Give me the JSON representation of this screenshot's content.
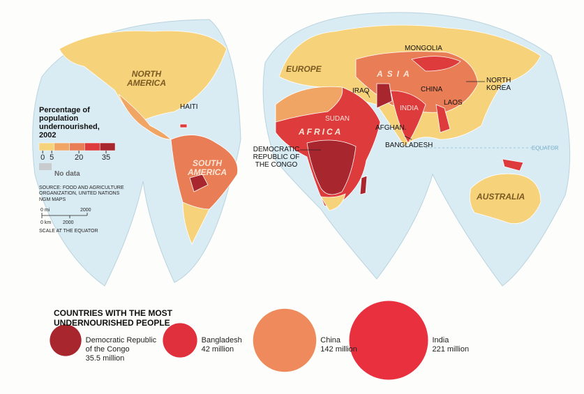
{
  "map": {
    "labels": {
      "north_america": "NORTH AMERICA",
      "south_america": "SOUTH AMERICA",
      "europe": "EUROPE",
      "asia": "ASIA",
      "africa": "AFRICA",
      "australia": "AUSTRALIA",
      "equator": "EQUATOR",
      "haiti": "HAITI",
      "mongolia": "MONGOLIA",
      "north_korea": "NORTH KOREA",
      "iraq": "IRAQ",
      "china": "CHINA",
      "laos": "LAOS",
      "india": "INDIA",
      "sudan": "SUDAN",
      "afghanistan": "AFGHAN.",
      "bangladesh": "BANGLADESH",
      "drc": "DEMOCRATIC REPUBLIC OF THE CONGO"
    }
  },
  "legend": {
    "title": "Percentage of population undernourished, 2002",
    "colors": [
      "#f6d27a",
      "#f0a565",
      "#e97d55",
      "#dd3b3c",
      "#a8262e"
    ],
    "ticks": [
      0,
      5,
      20,
      35
    ],
    "range": [
      -2,
      40
    ],
    "no_data": "No data",
    "no_data_color": "#c9ccce",
    "source": "SOURCE: FOOD AND AGRICULTURE ORGANIZATION, UNITED NATIONS",
    "credit": "NGM MAPS",
    "scale": {
      "mi_zero": "0 mi",
      "mi_end": "2000",
      "km_zero": "0 km",
      "km_end": "2000",
      "note": "SCALE AT THE EQUATOR"
    }
  },
  "top_countries": {
    "title": "COUNTRIES WITH THE MOST UNDERNOURISHED PEOPLE",
    "items": [
      {
        "name": "Democratic Republic of the Congo",
        "value": 35.5,
        "value_label": "35.5 million",
        "color": "#a8262e"
      },
      {
        "name": "Bangladesh",
        "value": 42,
        "value_label": "42 million",
        "color": "#e0303e"
      },
      {
        "name": "China",
        "value": 142,
        "value_label": "142 million",
        "color": "#ee8a5b"
      },
      {
        "name": "India",
        "value": 221,
        "value_label": "221 million",
        "color": "#e8303f"
      }
    ]
  }
}
